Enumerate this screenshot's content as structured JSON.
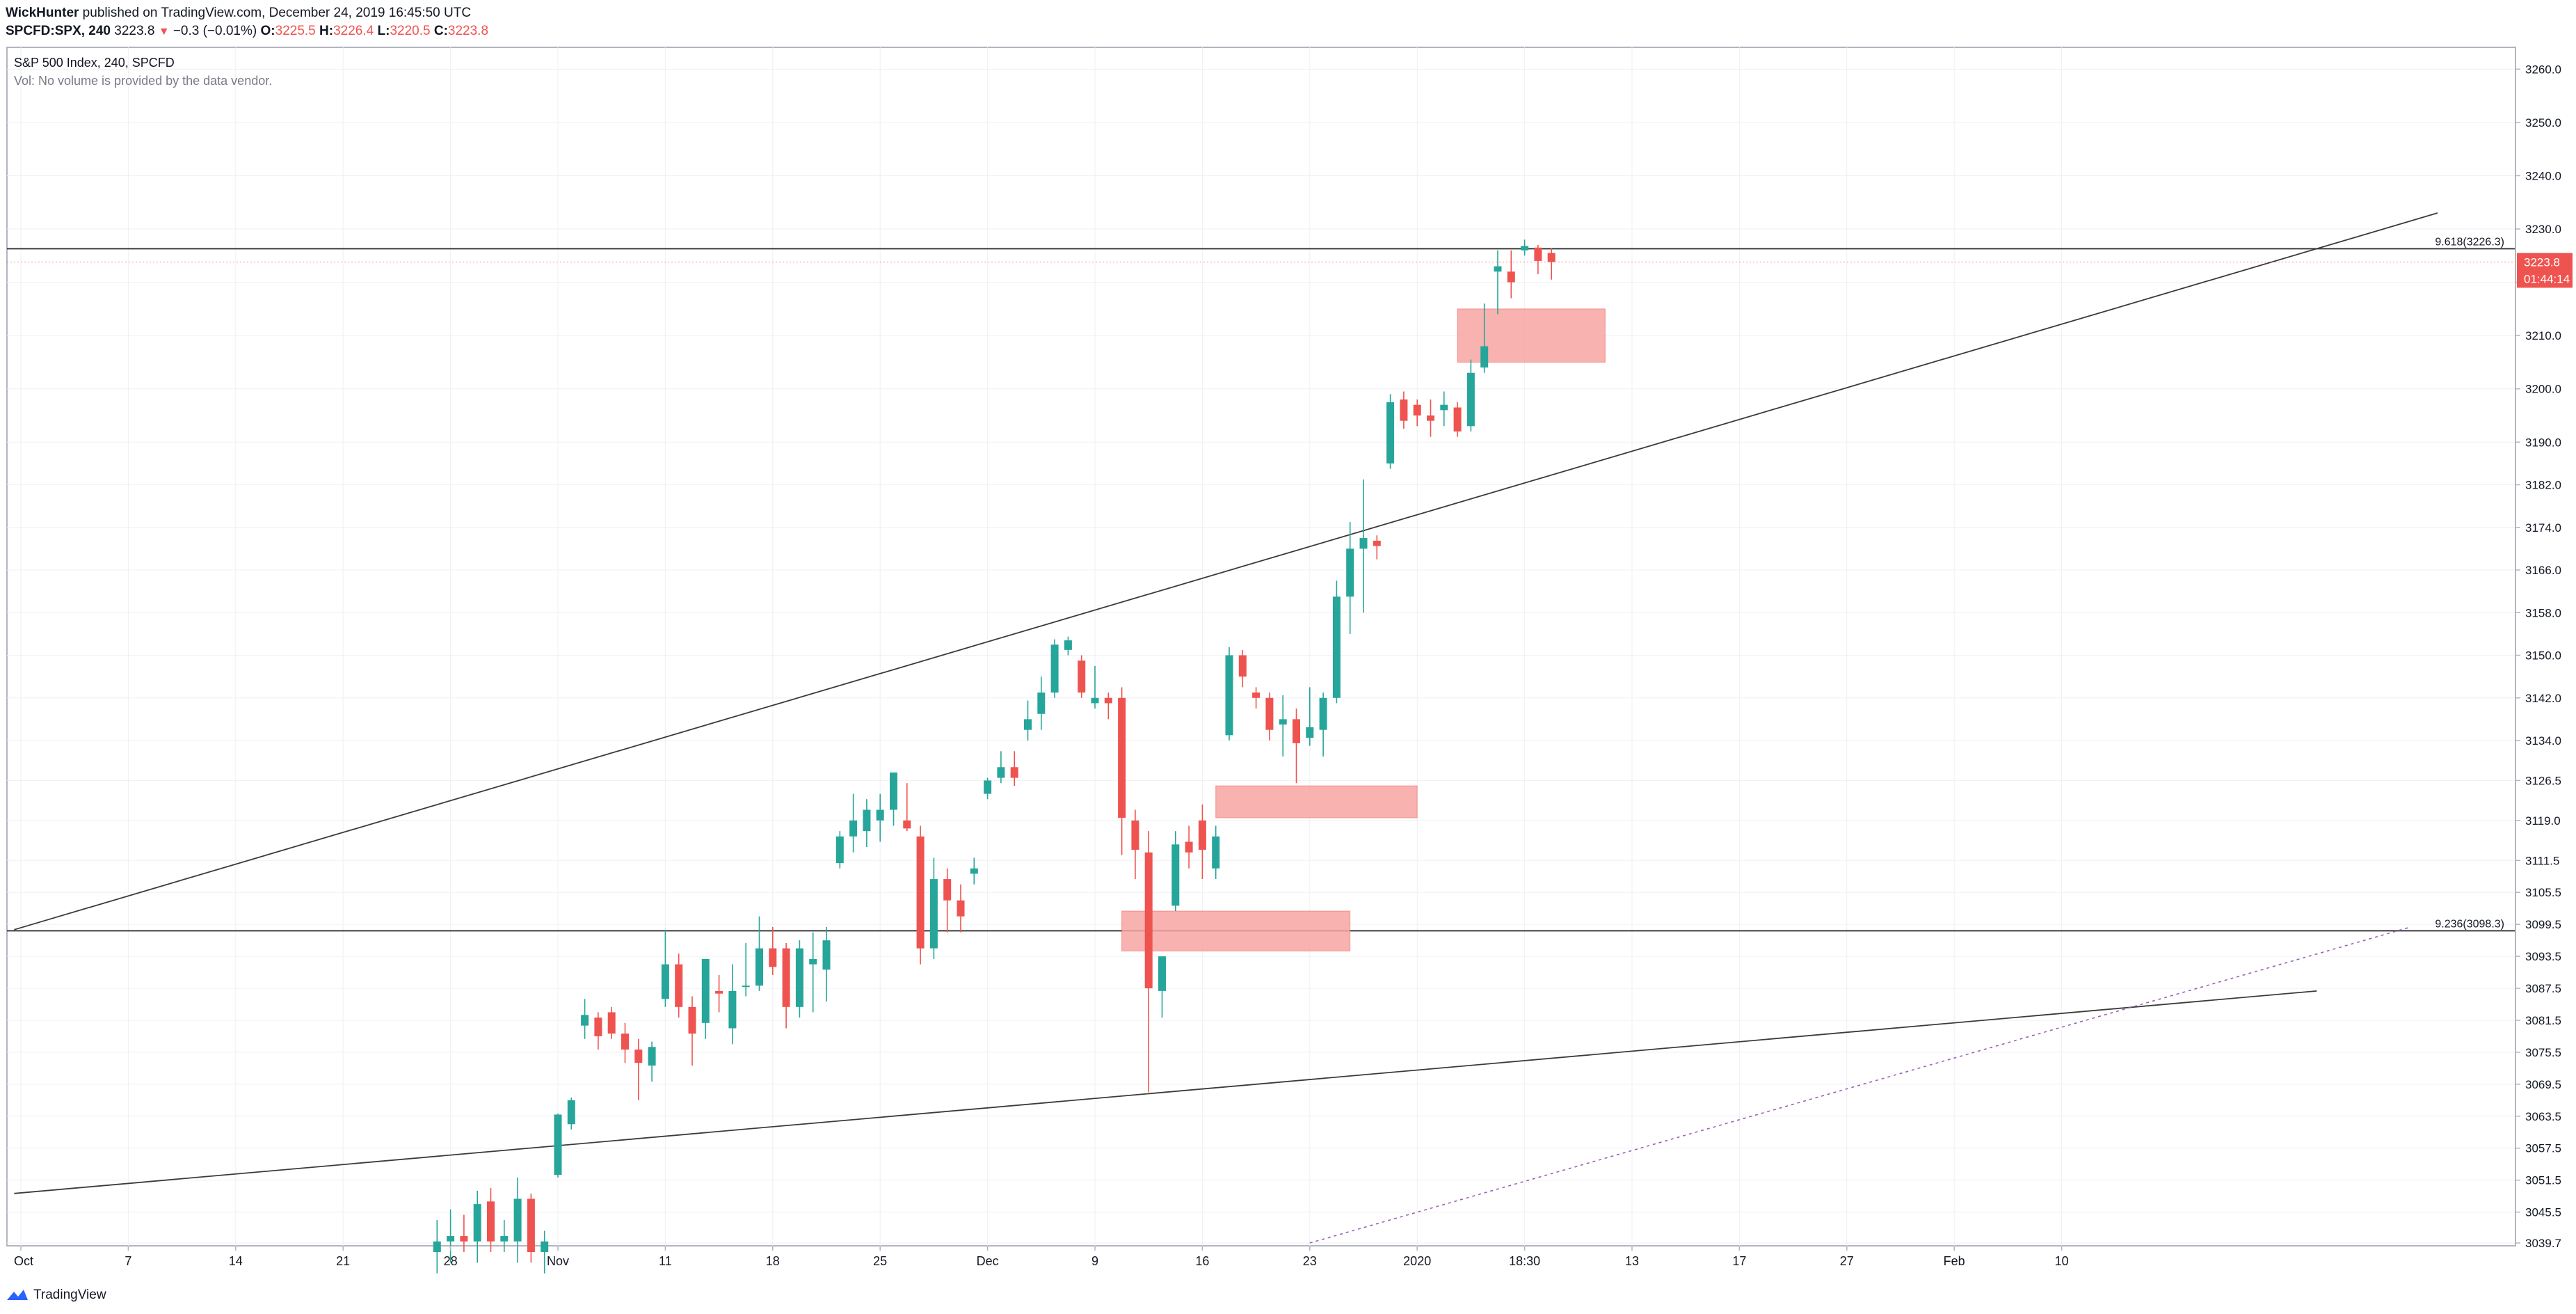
{
  "header": {
    "author": "WickHunter",
    "published_text": " published on TradingView.com, December 24, 2019 16:45:50 UTC",
    "symbol": "SPCFD:SPX, 240",
    "last": "3223.8",
    "change": "−0.3 (−0.01%)",
    "o_label": "O:",
    "o_value": "3225.5",
    "h_label": "H:",
    "h_value": "3226.4",
    "l_label": "L:",
    "l_value": "3220.5",
    "c_label": "C:",
    "c_value": "3223.8"
  },
  "legend": {
    "title": "S&P 500 Index, 240, SPCFD",
    "volume_note": "Vol: No volume is provided by the data vendor."
  },
  "footer": {
    "brand": "TradingView"
  },
  "colors": {
    "up": "#26a69a",
    "down": "#ef5350",
    "zone": "#f7a4a2",
    "grid": "#eef0f3",
    "line": "#3b3b3b",
    "dotted": "#9c5fb5"
  },
  "chart_data": {
    "type": "candlestick",
    "instrument": "S&P 500 Index",
    "timeframe": "240",
    "ylim": [
      3039.7,
      3262.0
    ],
    "y_ticks": [
      "3039.7",
      "3045.5",
      "3051.5",
      "3057.5",
      "3063.5",
      "3069.5",
      "3075.5",
      "3081.5",
      "3087.5",
      "3093.5",
      "3099.5",
      "3105.5",
      "3111.5",
      "3119.0",
      "3126.5",
      "3134.0",
      "3142.0",
      "3150.0",
      "3158.0",
      "3166.0",
      "3174.0",
      "3182.0",
      "3190.0",
      "3200.0",
      "3210.0",
      "3220.0",
      "3230.0",
      "3240.0",
      "3250.0",
      "3260.0"
    ],
    "x_ticks": [
      {
        "label": "Oct",
        "bar": 0
      },
      {
        "label": "7",
        "bar": 8
      },
      {
        "label": "14",
        "bar": 16
      },
      {
        "label": "21",
        "bar": 24
      },
      {
        "label": "28",
        "bar": 32
      },
      {
        "label": "Nov",
        "bar": 40
      },
      {
        "label": "11",
        "bar": 48
      },
      {
        "label": "18",
        "bar": 56
      },
      {
        "label": "25",
        "bar": 64
      },
      {
        "label": "Dec",
        "bar": 72
      },
      {
        "label": "9",
        "bar": 80
      },
      {
        "label": "16",
        "bar": 88
      },
      {
        "label": "23",
        "bar": 96
      },
      {
        "label": "2020",
        "bar": 104
      },
      {
        "label": "18:30",
        "bar": 112
      },
      {
        "label": "13",
        "bar": 120
      },
      {
        "label": "17",
        "bar": 128
      },
      {
        "label": "27",
        "bar": 136
      },
      {
        "label": "Feb",
        "bar": 144
      },
      {
        "label": "10",
        "bar": 152
      }
    ],
    "candles": [
      {
        "bar": 31,
        "o": 3038.0,
        "h": 3044.0,
        "l": 3034.0,
        "c": 3040.0
      },
      {
        "bar": 32,
        "o": 3040.0,
        "h": 3046.0,
        "l": 3036.0,
        "c": 3041.0
      },
      {
        "bar": 33,
        "o": 3041.0,
        "h": 3045.0,
        "l": 3038.0,
        "c": 3040.0
      },
      {
        "bar": 34,
        "o": 3040.0,
        "h": 3049.5,
        "l": 3036.0,
        "c": 3047.0
      },
      {
        "bar": 35,
        "o": 3047.5,
        "h": 3050.0,
        "l": 3038.0,
        "c": 3040.0
      },
      {
        "bar": 36,
        "o": 3040.0,
        "h": 3044.0,
        "l": 3038.0,
        "c": 3041.0
      },
      {
        "bar": 37,
        "o": 3040.0,
        "h": 3052.0,
        "l": 3036.0,
        "c": 3048.0
      },
      {
        "bar": 38,
        "o": 3048.0,
        "h": 3049.0,
        "l": 3036.0,
        "c": 3038.0
      },
      {
        "bar": 39,
        "o": 3038.0,
        "h": 3042.0,
        "l": 3034.0,
        "c": 3040.0
      },
      {
        "bar": 40,
        "o": 3052.5,
        "h": 3064.0,
        "l": 3052.0,
        "c": 3063.8
      },
      {
        "bar": 41,
        "o": 3062.0,
        "h": 3067.0,
        "l": 3061.0,
        "c": 3066.5
      },
      {
        "bar": 42,
        "o": 3080.5,
        "h": 3085.5,
        "l": 3078.0,
        "c": 3082.5
      },
      {
        "bar": 43,
        "o": 3082.0,
        "h": 3083.0,
        "l": 3076.0,
        "c": 3078.5
      },
      {
        "bar": 44,
        "o": 3083.0,
        "h": 3084.0,
        "l": 3078.0,
        "c": 3079.0
      },
      {
        "bar": 45,
        "o": 3079.0,
        "h": 3081.0,
        "l": 3073.5,
        "c": 3076.0
      },
      {
        "bar": 46,
        "o": 3076.0,
        "h": 3078.0,
        "l": 3066.5,
        "c": 3073.5
      },
      {
        "bar": 47,
        "o": 3073.0,
        "h": 3077.5,
        "l": 3070.0,
        "c": 3076.5
      },
      {
        "bar": 48,
        "o": 3085.5,
        "h": 3098.5,
        "l": 3084.0,
        "c": 3092.0
      },
      {
        "bar": 49,
        "o": 3092.0,
        "h": 3094.0,
        "l": 3082.0,
        "c": 3084.0
      },
      {
        "bar": 50,
        "o": 3084.0,
        "h": 3086.0,
        "l": 3073.0,
        "c": 3079.0
      },
      {
        "bar": 51,
        "o": 3081.0,
        "h": 3092.0,
        "l": 3078.0,
        "c": 3093.0
      },
      {
        "bar": 52,
        "o": 3087.0,
        "h": 3090.0,
        "l": 3083.0,
        "c": 3086.5
      },
      {
        "bar": 53,
        "o": 3080.0,
        "h": 3092.0,
        "l": 3077.0,
        "c": 3087.0
      },
      {
        "bar": 54,
        "o": 3088.0,
        "h": 3096.0,
        "l": 3086.0,
        "c": 3088.0
      },
      {
        "bar": 55,
        "o": 3088.0,
        "h": 3101.0,
        "l": 3087.0,
        "c": 3095.0
      },
      {
        "bar": 56,
        "o": 3095.0,
        "h": 3099.0,
        "l": 3090.0,
        "c": 3091.5
      },
      {
        "bar": 57,
        "o": 3095.0,
        "h": 3096.0,
        "l": 3080.0,
        "c": 3084.0
      },
      {
        "bar": 58,
        "o": 3084.0,
        "h": 3096.5,
        "l": 3082.0,
        "c": 3095.0
      },
      {
        "bar": 59,
        "o": 3092.0,
        "h": 3098.0,
        "l": 3083.0,
        "c": 3093.0
      },
      {
        "bar": 60,
        "o": 3091.0,
        "h": 3099.0,
        "l": 3085.0,
        "c": 3096.5
      },
      {
        "bar": 61,
        "o": 3111.0,
        "h": 3117.0,
        "l": 3110.0,
        "c": 3116.0
      },
      {
        "bar": 62,
        "o": 3116.0,
        "h": 3124.0,
        "l": 3113.0,
        "c": 3119.0
      },
      {
        "bar": 63,
        "o": 3117.0,
        "h": 3123.0,
        "l": 3114.0,
        "c": 3121.0
      },
      {
        "bar": 64,
        "o": 3119.0,
        "h": 3124.0,
        "l": 3115.0,
        "c": 3121.0
      },
      {
        "bar": 65,
        "o": 3121.0,
        "h": 3128.0,
        "l": 3118.0,
        "c": 3128.0
      },
      {
        "bar": 66,
        "o": 3119.0,
        "h": 3126.0,
        "l": 3117.0,
        "c": 3117.5
      },
      {
        "bar": 67,
        "o": 3116.0,
        "h": 3118.0,
        "l": 3092.0,
        "c": 3095.0
      },
      {
        "bar": 68,
        "o": 3095.0,
        "h": 3112.0,
        "l": 3093.0,
        "c": 3108.0
      },
      {
        "bar": 69,
        "o": 3108.0,
        "h": 3110.0,
        "l": 3098.0,
        "c": 3104.0
      },
      {
        "bar": 70,
        "o": 3104.0,
        "h": 3107.0,
        "l": 3098.0,
        "c": 3101.0
      },
      {
        "bar": 71,
        "o": 3109.0,
        "h": 3112.0,
        "l": 3107.0,
        "c": 3110.0
      },
      {
        "bar": 72,
        "o": 3124.0,
        "h": 3127.0,
        "l": 3123.0,
        "c": 3126.5
      },
      {
        "bar": 73,
        "o": 3127.0,
        "h": 3132.0,
        "l": 3126.0,
        "c": 3129.0
      },
      {
        "bar": 74,
        "o": 3129.0,
        "h": 3132.0,
        "l": 3125.5,
        "c": 3127.0
      },
      {
        "bar": 75,
        "o": 3136.0,
        "h": 3141.5,
        "l": 3134.0,
        "c": 3138.0
      },
      {
        "bar": 76,
        "o": 3139.0,
        "h": 3146.0,
        "l": 3136.0,
        "c": 3143.0
      },
      {
        "bar": 77,
        "o": 3143.0,
        "h": 3153.0,
        "l": 3142.0,
        "c": 3152.0
      },
      {
        "bar": 78,
        "o": 3151.0,
        "h": 3153.5,
        "l": 3150.0,
        "c": 3152.8
      },
      {
        "bar": 79,
        "o": 3149.0,
        "h": 3150.0,
        "l": 3142.0,
        "c": 3143.0
      },
      {
        "bar": 80,
        "o": 3141.0,
        "h": 3148.0,
        "l": 3140.0,
        "c": 3142.0
      },
      {
        "bar": 81,
        "o": 3142.0,
        "h": 3143.0,
        "l": 3138.0,
        "c": 3141.0
      },
      {
        "bar": 82,
        "o": 3142.0,
        "h": 3144.0,
        "l": 3112.5,
        "c": 3119.5
      },
      {
        "bar": 83,
        "o": 3119.0,
        "h": 3121.0,
        "l": 3108.0,
        "c": 3113.5
      },
      {
        "bar": 84,
        "o": 3113.0,
        "h": 3117.0,
        "l": 3068.0,
        "c": 3087.5
      },
      {
        "bar": 85,
        "o": 3087.0,
        "h": 3092.0,
        "l": 3082.0,
        "c": 3093.5
      },
      {
        "bar": 86,
        "o": 3103.0,
        "h": 3117.0,
        "l": 3102.0,
        "c": 3114.5
      },
      {
        "bar": 87,
        "o": 3115.0,
        "h": 3118.0,
        "l": 3110.0,
        "c": 3113.0
      },
      {
        "bar": 88,
        "o": 3119.0,
        "h": 3122.0,
        "l": 3108.0,
        "c": 3113.5
      },
      {
        "bar": 89,
        "o": 3110.0,
        "h": 3118.0,
        "l": 3108.0,
        "c": 3116.0
      },
      {
        "bar": 90,
        "o": 3135.0,
        "h": 3151.5,
        "l": 3134.0,
        "c": 3150.0
      },
      {
        "bar": 91,
        "o": 3150.0,
        "h": 3151.0,
        "l": 3144.0,
        "c": 3146.0
      },
      {
        "bar": 92,
        "o": 3143.0,
        "h": 3144.0,
        "l": 3140.0,
        "c": 3142.0
      },
      {
        "bar": 93,
        "o": 3142.0,
        "h": 3143.0,
        "l": 3134.0,
        "c": 3136.0
      },
      {
        "bar": 94,
        "o": 3137.0,
        "h": 3142.5,
        "l": 3131.0,
        "c": 3138.0
      },
      {
        "bar": 95,
        "o": 3138.0,
        "h": 3140.0,
        "l": 3126.0,
        "c": 3133.5
      },
      {
        "bar": 96,
        "o": 3134.5,
        "h": 3144.0,
        "l": 3133.0,
        "c": 3136.5
      },
      {
        "bar": 97,
        "o": 3136.0,
        "h": 3143.0,
        "l": 3131.0,
        "c": 3142.0
      },
      {
        "bar": 98,
        "o": 3142.0,
        "h": 3164.0,
        "l": 3141.0,
        "c": 3161.0
      },
      {
        "bar": 99,
        "o": 3161.0,
        "h": 3175.0,
        "l": 3154.0,
        "c": 3170.0
      },
      {
        "bar": 100,
        "o": 3170.0,
        "h": 3183.0,
        "l": 3158.0,
        "c": 3172.0
      },
      {
        "bar": 101,
        "o": 3171.5,
        "h": 3172.5,
        "l": 3168.0,
        "c": 3170.5
      },
      {
        "bar": 102,
        "o": 3186.0,
        "h": 3199.0,
        "l": 3185.0,
        "c": 3197.5
      },
      {
        "bar": 103,
        "o": 3198.0,
        "h": 3199.5,
        "l": 3192.5,
        "c": 3194.0
      },
      {
        "bar": 104,
        "o": 3197.0,
        "h": 3198.0,
        "l": 3193.0,
        "c": 3195.0
      },
      {
        "bar": 105,
        "o": 3195.0,
        "h": 3198.0,
        "l": 3191.0,
        "c": 3194.0
      },
      {
        "bar": 106,
        "o": 3196.0,
        "h": 3199.5,
        "l": 3193.0,
        "c": 3197.0
      },
      {
        "bar": 107,
        "o": 3196.5,
        "h": 3197.5,
        "l": 3191.0,
        "c": 3192.0
      },
      {
        "bar": 108,
        "o": 3193.0,
        "h": 3205.5,
        "l": 3192.0,
        "c": 3203.0
      },
      {
        "bar": 109,
        "o": 3204.0,
        "h": 3216.0,
        "l": 3203.0,
        "c": 3208.0
      },
      {
        "bar": 110,
        "o": 3222.0,
        "h": 3226.0,
        "l": 3214.0,
        "c": 3223.0
      },
      {
        "bar": 111,
        "o": 3222.0,
        "h": 3226.0,
        "l": 3217.0,
        "c": 3220.0
      },
      {
        "bar": 112,
        "o": 3226.0,
        "h": 3228.0,
        "l": 3225.0,
        "c": 3226.8
      },
      {
        "bar": 113,
        "o": 3226.5,
        "h": 3227.0,
        "l": 3221.5,
        "c": 3224.0
      },
      {
        "bar": 114,
        "o": 3225.5,
        "h": 3226.4,
        "l": 3220.5,
        "c": 3223.8
      }
    ],
    "zones": [
      {
        "bar_from": 107,
        "bar_to": 118,
        "y_top": 3215.0,
        "y_bottom": 3205.0
      },
      {
        "bar_from": 89,
        "bar_to": 104,
        "y_top": 3125.5,
        "y_bottom": 3119.5
      },
      {
        "bar_from": 82,
        "bar_to": 99,
        "y_top": 3102.0,
        "y_bottom": 3094.5
      }
    ],
    "horizontal_levels": [
      {
        "label": "9.618(3226.3)",
        "y": 3226.3
      },
      {
        "label": "9.236(3098.3)",
        "y": 3098.3
      }
    ],
    "trendlines": [
      {
        "style": "solid",
        "from": {
          "bar": -0.5,
          "y": 3098.5
        },
        "to": {
          "bar": 180,
          "y": 3233.0
        }
      },
      {
        "style": "solid",
        "from": {
          "bar": -0.5,
          "y": 3049.0
        },
        "to": {
          "bar": 171,
          "y": 3087.0
        }
      },
      {
        "style": "dotted",
        "from": {
          "bar": 96,
          "y": 3039.7
        },
        "to": {
          "bar": 178,
          "y": 3099.0
        }
      }
    ],
    "last_price": {
      "value": "3223.8",
      "countdown": "01:44:14"
    }
  }
}
